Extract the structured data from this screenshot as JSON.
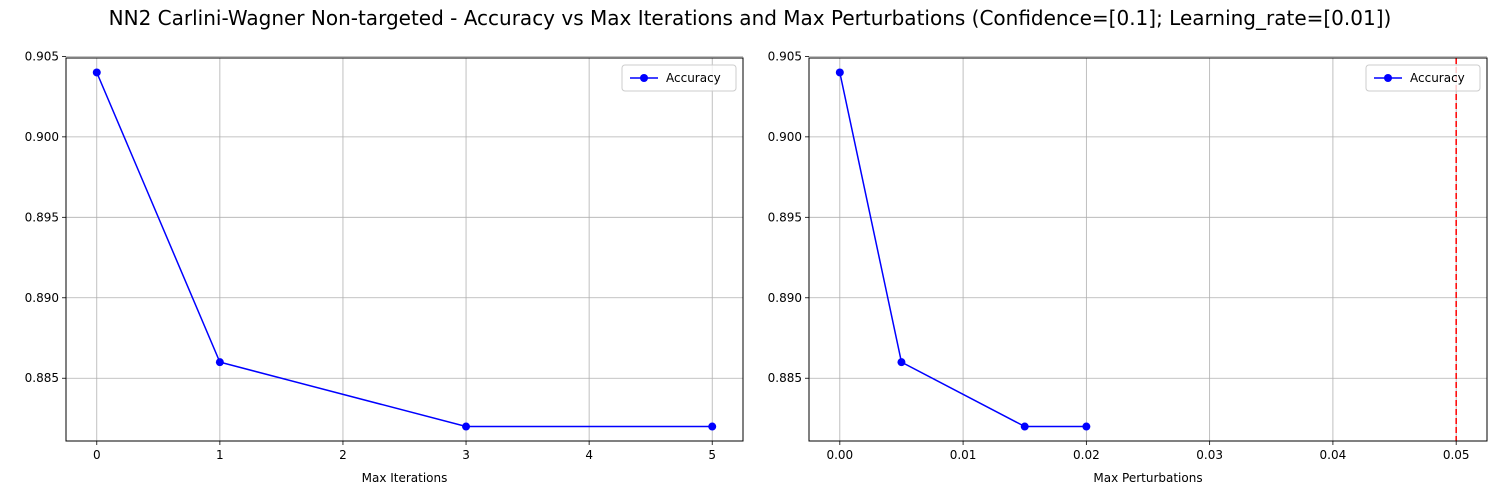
{
  "title": "NN2 Carlini-Wagner Non-targeted - Accuracy vs Max Iterations and Max Perturbations (Confidence=[0.1]; Learning_rate=[0.01])",
  "colors": {
    "series": "#0000ff",
    "marker_line": "#ff0000",
    "grid": "#b0b0b0"
  },
  "chart_data": [
    {
      "type": "line",
      "xlabel": "Max Iterations",
      "ylabel": "",
      "x": [
        0,
        1,
        3,
        5
      ],
      "series": [
        {
          "name": "Accuracy",
          "values": [
            0.904,
            0.886,
            0.882,
            0.882
          ]
        }
      ],
      "xlim": [
        -0.25,
        5.25
      ],
      "ylim": [
        0.8811,
        0.9049
      ],
      "xticks": [
        0,
        1,
        2,
        3,
        4,
        5
      ],
      "xtick_labels": [
        "0",
        "1",
        "2",
        "3",
        "4",
        "5"
      ],
      "yticks": [
        0.885,
        0.89,
        0.895,
        0.9,
        0.905
      ],
      "ytick_labels": [
        "0.885",
        "0.890",
        "0.895",
        "0.900",
        "0.905"
      ],
      "grid": true,
      "legend": "upper-right"
    },
    {
      "type": "line",
      "xlabel": "Max Perturbations",
      "ylabel": "",
      "x": [
        0.0,
        0.005,
        0.015,
        0.02
      ],
      "series": [
        {
          "name": "Accuracy",
          "values": [
            0.904,
            0.886,
            0.882,
            0.882
          ]
        }
      ],
      "xlim": [
        -0.0025,
        0.0525
      ],
      "ylim": [
        0.8811,
        0.9049
      ],
      "xticks": [
        0.0,
        0.01,
        0.02,
        0.03,
        0.04,
        0.05
      ],
      "xtick_labels": [
        "0.00",
        "0.01",
        "0.02",
        "0.03",
        "0.04",
        "0.05"
      ],
      "yticks": [
        0.885,
        0.89,
        0.895,
        0.9,
        0.905
      ],
      "ytick_labels": [
        "0.885",
        "0.890",
        "0.895",
        "0.900",
        "0.905"
      ],
      "vline": 0.05,
      "grid": true,
      "legend": "upper-right"
    }
  ]
}
